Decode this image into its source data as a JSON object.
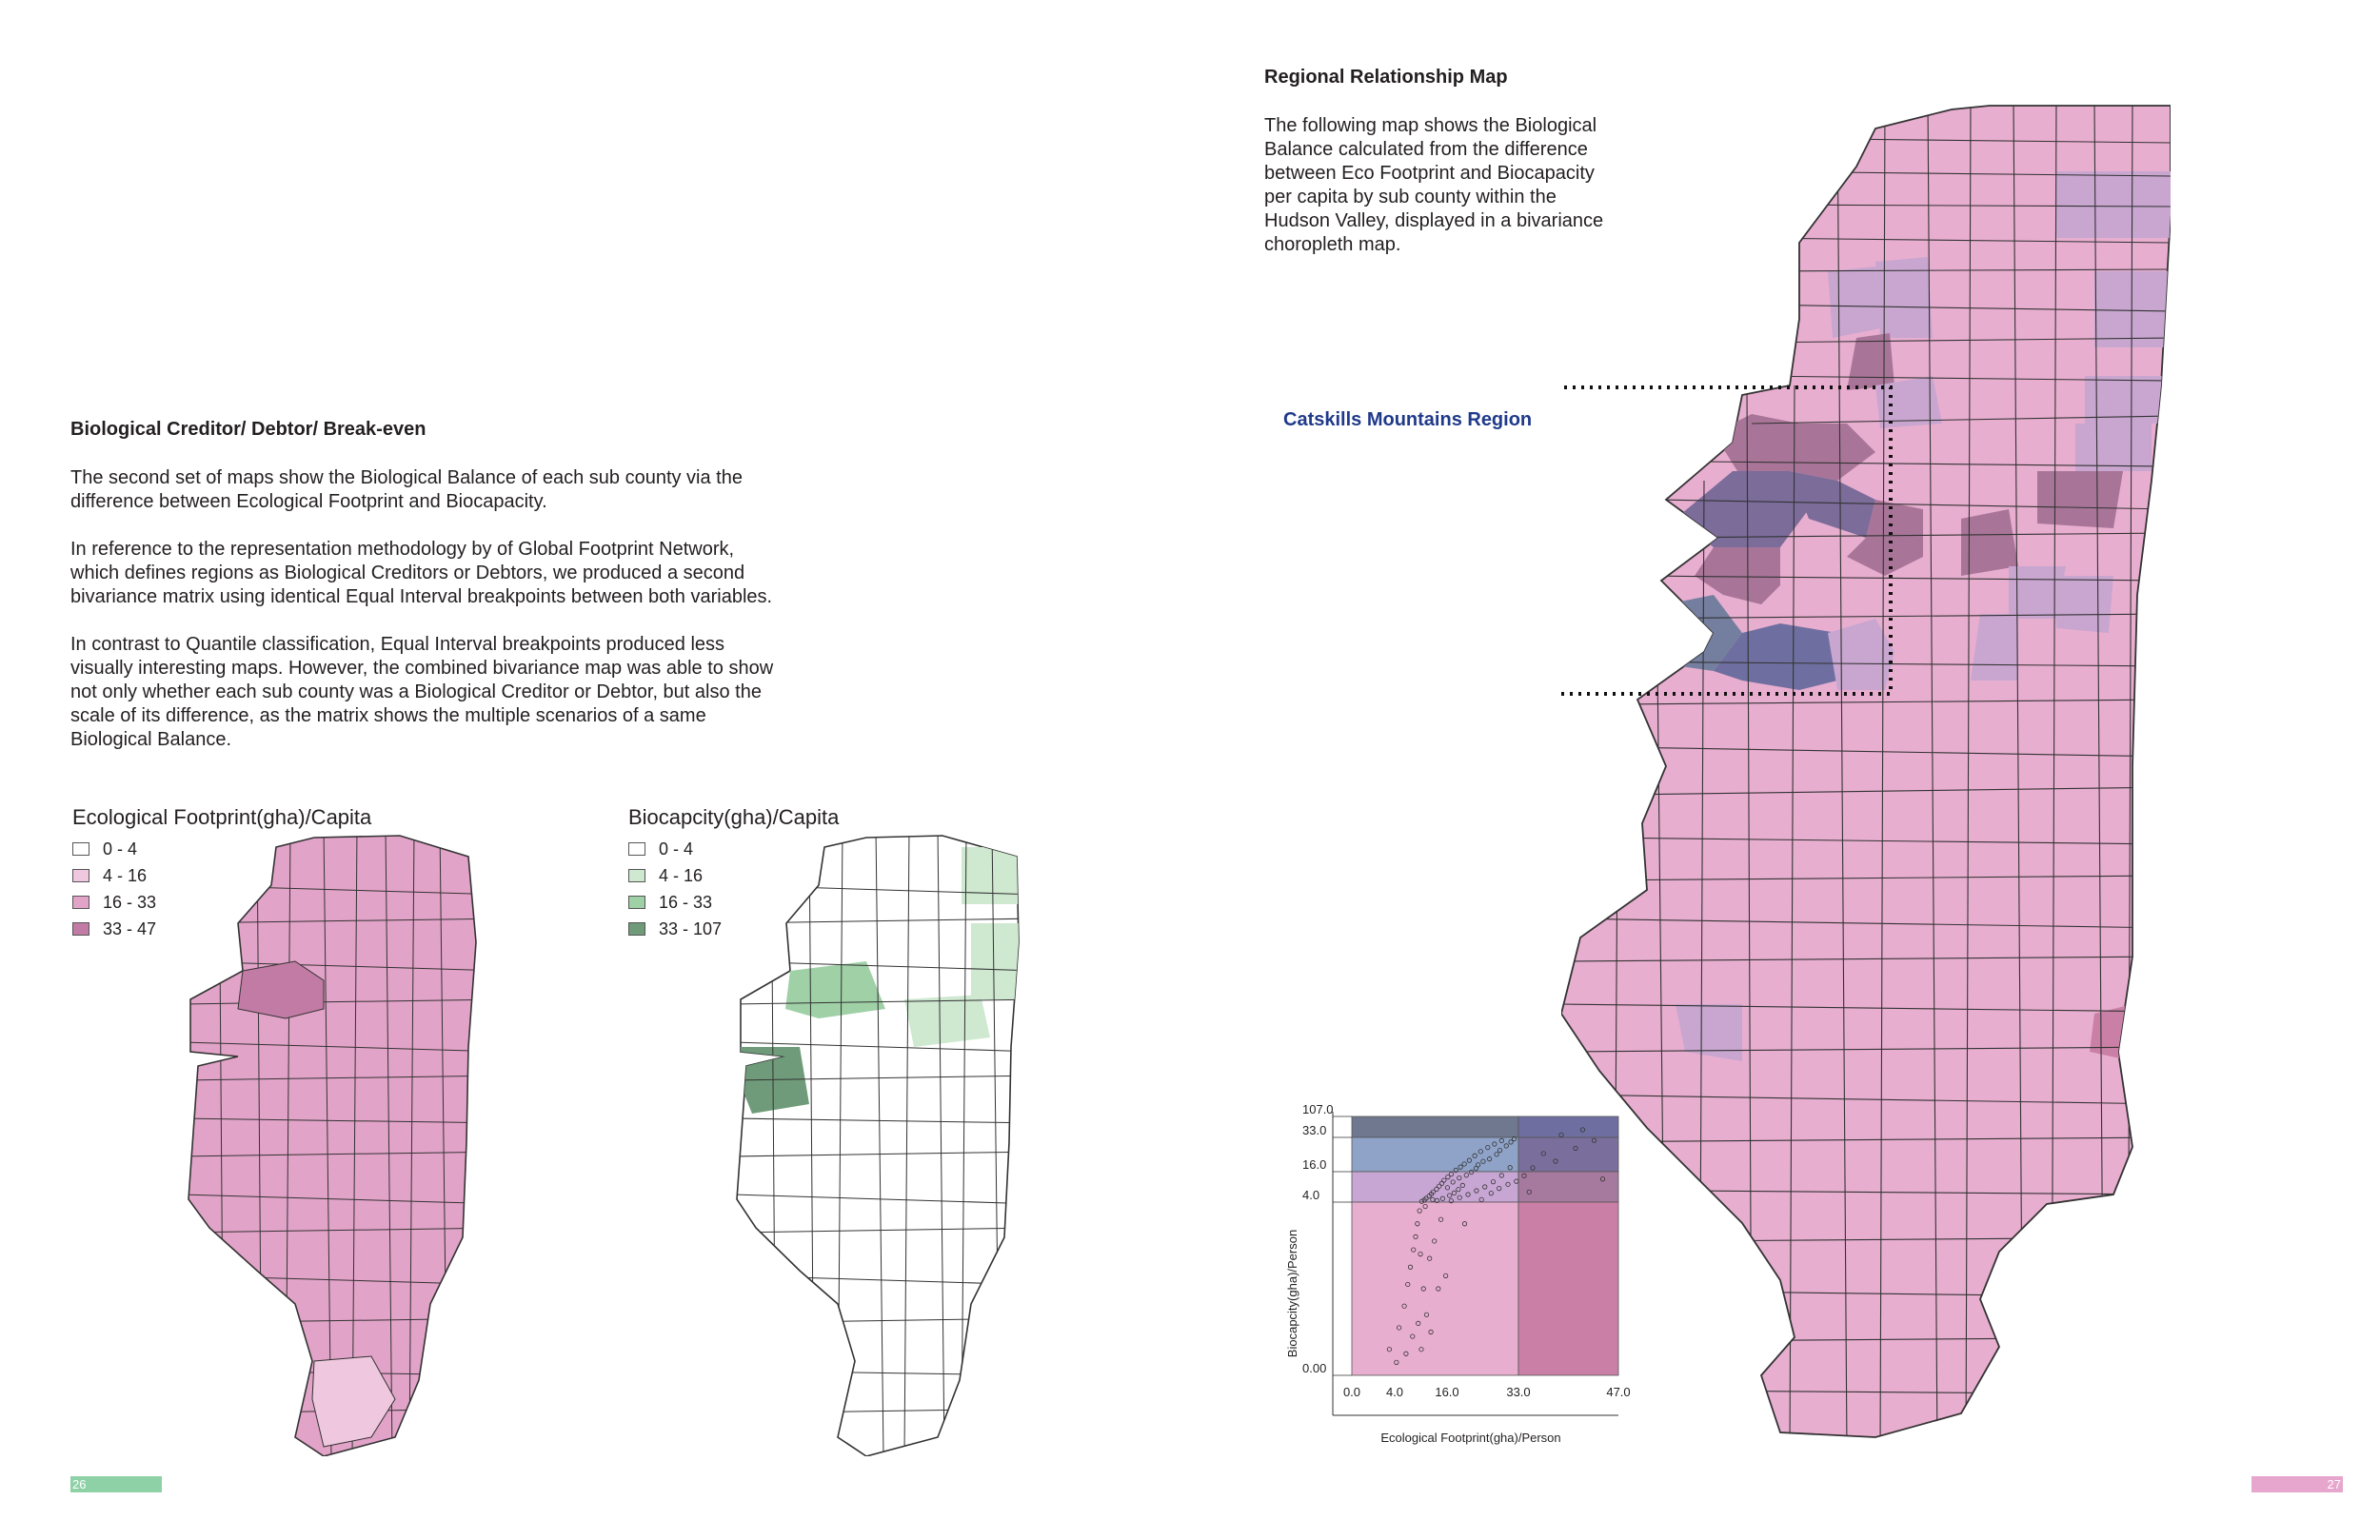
{
  "left_page": {
    "heading": "Biological Creditor/ Debtor/ Break-even",
    "paragraphs": [
      "The second set of maps show the Biological Balance of each sub county via the difference between Ecological Footprint and Biocapacity.",
      "In reference to the representation methodology by of Global Footprint Network, which defines regions as Biological Creditors or Debtors, we produced a second bivariance matrix  using identical Equal Interval breakpoints between both variables.",
      "In contrast to Quantile classification, Equal Interval breakpoints produced less visually interesting maps. However, the combined bivariance map was able to show not only whether each sub county was a Biological Creditor or Debtor, but also the scale of its difference, as the matrix shows the multiple scenarios of a same Biological Balance."
    ],
    "map_footprint": {
      "title": "Ecological Footprint(gha)/Capita",
      "legend": [
        {
          "label": "0 - 4",
          "color": "#ffffff"
        },
        {
          "label": "4 - 16",
          "color": "#efc7de"
        },
        {
          "label": "16 - 33",
          "color": "#e2a3c8"
        },
        {
          "label": "33 - 47",
          "color": "#c27ba4"
        }
      ]
    },
    "map_biocapacity": {
      "title": "Biocapcity(gha)/Capita",
      "legend": [
        {
          "label": "0 - 4",
          "color": "#ffffff"
        },
        {
          "label": "4 - 16",
          "color": "#cfe8d0"
        },
        {
          "label": "16 - 33",
          "color": "#9fd0a6"
        },
        {
          "label": "33 - 107",
          "color": "#6f9b7a"
        }
      ]
    },
    "page_number": "26",
    "tab_color": "#8fd1a6"
  },
  "right_page": {
    "heading": "Regional Relationship Map",
    "paragraph": "The following map shows the Biological Balance calculated from the difference between Eco Footprint and Biocapacity per capita by sub county within the Hudson Valley, displayed in a bivariance choropleth map.",
    "callout": "Catskills Mountains Region",
    "callout_color": "#1f3a8a",
    "page_number": "27",
    "tab_color": "#e7a6cd"
  },
  "colors": {
    "pink_light": "#e8aed0",
    "pink_mid": "#c98fb6",
    "lavender": "#c8a6d0",
    "purple_mid": "#a87598",
    "purple_dark": "#8e6e98",
    "slate": "#747fa0",
    "navy": "#6e6fa0"
  },
  "chart_data": {
    "type": "scatter",
    "xlabel": "Ecological Footprint(gha)/Person",
    "ylabel": "Biocapcity(gha)/Person",
    "x_ticks": [
      "0.0",
      "4.0",
      "16.0",
      "33.0",
      "47.0"
    ],
    "y_ticks": [
      "0.00",
      "4.0",
      "16.0",
      "33.0",
      "107.0"
    ],
    "x_breaks": [
      0,
      4,
      16,
      33,
      47
    ],
    "y_breaks": [
      0,
      4,
      16,
      33,
      107
    ],
    "cells": [
      {
        "x_range": [
          0,
          33
        ],
        "y_range": [
          33,
          107
        ],
        "color": "#707890"
      },
      {
        "x_range": [
          33,
          47
        ],
        "y_range": [
          33,
          107
        ],
        "color": "#6e6fa0"
      },
      {
        "x_range": [
          0,
          33
        ],
        "y_range": [
          16,
          33
        ],
        "color": "#8fa3c8"
      },
      {
        "x_range": [
          33,
          47
        ],
        "y_range": [
          16,
          33
        ],
        "color": "#7a6f9c"
      },
      {
        "x_range": [
          0,
          33
        ],
        "y_range": [
          4,
          16
        ],
        "color": "#c8a6d4"
      },
      {
        "x_range": [
          33,
          47
        ],
        "y_range": [
          4,
          16
        ],
        "color": "#a67a9e"
      },
      {
        "x_range": [
          0,
          33
        ],
        "y_range": [
          0,
          4
        ],
        "color": "#e8aed0"
      },
      {
        "x_range": [
          33,
          47
        ],
        "y_range": [
          0,
          4
        ],
        "color": "#ca80a6"
      }
    ],
    "points": [
      [
        3.5,
        0.6
      ],
      [
        5,
        1.1
      ],
      [
        6.2,
        1.6
      ],
      [
        7,
        2.1
      ],
      [
        7.6,
        2.5
      ],
      [
        8.3,
        2.9
      ],
      [
        8.8,
        3.2
      ],
      [
        9.2,
        3.5
      ],
      [
        9.7,
        3.8
      ],
      [
        10.2,
        4.3
      ],
      [
        10.8,
        4.8
      ],
      [
        11.2,
        5.5
      ],
      [
        11.9,
        6.4
      ],
      [
        12.4,
        7.2
      ],
      [
        12.8,
        8.0
      ],
      [
        13.6,
        9.1
      ],
      [
        14.2,
        10.3
      ],
      [
        14.8,
        11.4
      ],
      [
        15.3,
        12.6
      ],
      [
        16.2,
        13.9
      ],
      [
        17.0,
        15.0
      ],
      [
        18.1,
        16.7
      ],
      [
        19.2,
        18.3
      ],
      [
        20.1,
        19.8
      ],
      [
        21.3,
        21.6
      ],
      [
        22.6,
        23.9
      ],
      [
        24.0,
        26.0
      ],
      [
        25.7,
        28.0
      ],
      [
        27.3,
        29.7
      ],
      [
        29.0,
        31.4
      ],
      [
        9.4,
        1.2
      ],
      [
        10.6,
        2.0
      ],
      [
        12.0,
        2.7
      ],
      [
        13.1,
        3.1
      ],
      [
        14.6,
        3.6
      ],
      [
        15.7,
        2.3
      ],
      [
        11.3,
        1.4
      ],
      [
        8.1,
        0.9
      ],
      [
        6.6,
        0.5
      ],
      [
        4.4,
        0.3
      ],
      [
        13.7,
        4.6
      ],
      [
        15.0,
        5.4
      ],
      [
        16.6,
        6.6
      ],
      [
        17.7,
        7.6
      ],
      [
        18.7,
        9.0
      ],
      [
        19.7,
        10.6
      ],
      [
        12.7,
        5.0
      ],
      [
        11.0,
        3.9
      ],
      [
        9.9,
        2.8
      ],
      [
        16.1,
        9.7
      ],
      [
        17.4,
        11.9
      ],
      [
        18.9,
        13.5
      ],
      [
        20.6,
        14.6
      ],
      [
        21.8,
        15.8
      ],
      [
        22.9,
        17.6
      ],
      [
        23.4,
        19.4
      ],
      [
        24.6,
        21.1
      ],
      [
        26.1,
        22.3
      ],
      [
        27.8,
        24.6
      ],
      [
        28.6,
        26.6
      ],
      [
        30.1,
        28.8
      ],
      [
        31.2,
        30.7
      ],
      [
        32.0,
        32.3
      ],
      [
        35.0,
        17.9
      ],
      [
        38.2,
        21.2
      ],
      [
        41.0,
        27.6
      ],
      [
        43.6,
        31.5
      ],
      [
        44.8,
        13.1
      ],
      [
        39.0,
        42.0
      ],
      [
        42.0,
        60.0
      ],
      [
        36.5,
        25.0
      ],
      [
        31.0,
        18.0
      ],
      [
        29.0,
        14.5
      ],
      [
        27.0,
        12.0
      ],
      [
        25.0,
        10.0
      ],
      [
        23.0,
        8.5
      ],
      [
        21.0,
        7.0
      ],
      [
        19.0,
        5.8
      ],
      [
        17.0,
        4.5
      ],
      [
        14.0,
        2.0
      ],
      [
        12.3,
        1.0
      ],
      [
        10.1,
        0.6
      ],
      [
        20.2,
        3.5
      ],
      [
        24.2,
        5.0
      ],
      [
        26.5,
        7.5
      ],
      [
        28.4,
        9.4
      ],
      [
        30.5,
        11.0
      ],
      [
        32.5,
        12.2
      ],
      [
        33.8,
        14.4
      ],
      [
        34.5,
        8.0
      ]
    ],
    "xlim": [
      0,
      47
    ],
    "ylim": [
      0,
      107
    ]
  }
}
